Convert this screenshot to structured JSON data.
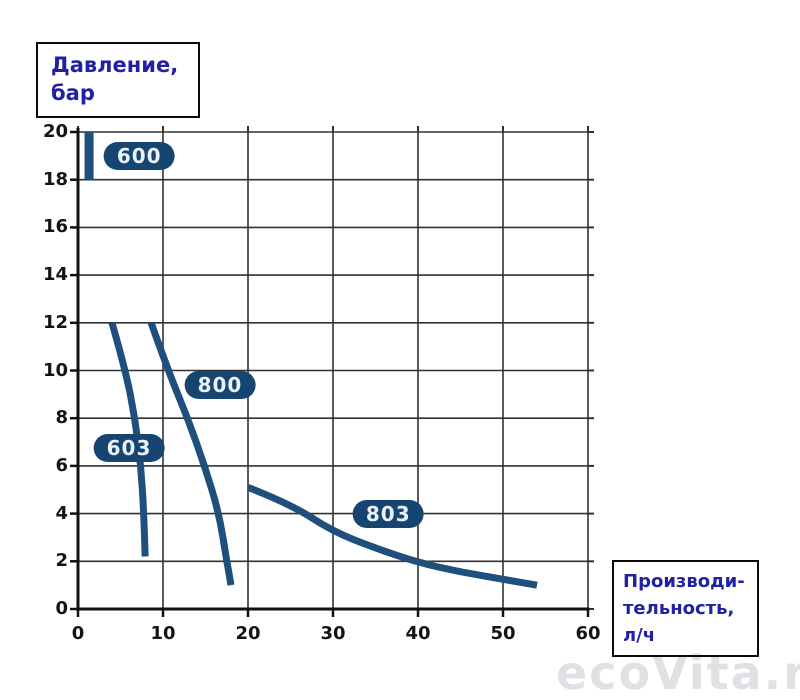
{
  "pressure_label": {
    "line1": "Давление,",
    "line2": "бар"
  },
  "productivity_label": {
    "line1": "Производи-",
    "line2": "тельность,",
    "line3": "л/ч"
  },
  "watermark": "ecoVita.ru",
  "colors": {
    "curve": "#1f4f7c",
    "pill_fill": "#164571",
    "pill_text": "#eaf1f8",
    "grid": "#323232",
    "axis": "#111111",
    "label_text": "#2121a3",
    "watermark": "#e1e1e5"
  },
  "chart_data": {
    "type": "line",
    "title": "",
    "xlabel": "Производительность, л/ч",
    "ylabel": "Давление, бар",
    "xlim": [
      0,
      60
    ],
    "ylim": [
      0,
      20
    ],
    "x_ticks": [
      0,
      10,
      20,
      30,
      40,
      50,
      60
    ],
    "y_ticks": [
      0,
      2,
      4,
      6,
      8,
      10,
      12,
      14,
      16,
      18,
      20
    ],
    "grid": true,
    "legend_position": "inline-pills",
    "series": [
      {
        "name": "600",
        "width": 9,
        "points": [
          [
            1.3,
            20
          ],
          [
            1.3,
            18
          ]
        ],
        "label_pos": [
          7.2,
          19.0
        ]
      },
      {
        "name": "603",
        "width": 7,
        "points": [
          [
            4.0,
            12
          ],
          [
            5.6,
            10
          ],
          [
            6.7,
            8
          ],
          [
            7.4,
            6
          ],
          [
            7.75,
            4
          ],
          [
            7.9,
            2.2
          ]
        ],
        "label_pos": [
          6.0,
          6.75
        ]
      },
      {
        "name": "800",
        "width": 7,
        "points": [
          [
            8.6,
            12
          ],
          [
            10.6,
            10
          ],
          [
            12.9,
            8
          ],
          [
            14.9,
            6
          ],
          [
            16.6,
            4
          ],
          [
            17.5,
            2
          ],
          [
            18.0,
            1.0
          ]
        ],
        "label_pos": [
          16.7,
          9.4
        ]
      },
      {
        "name": "803",
        "width": 7,
        "points": [
          [
            20.0,
            5.1
          ],
          [
            25.0,
            4.4
          ],
          [
            30.0,
            3.25
          ],
          [
            35.0,
            2.55
          ],
          [
            40.0,
            1.95
          ],
          [
            45.0,
            1.55
          ],
          [
            50.0,
            1.25
          ],
          [
            54.0,
            1.0
          ]
        ],
        "label_pos": [
          36.5,
          4.0
        ]
      }
    ]
  }
}
